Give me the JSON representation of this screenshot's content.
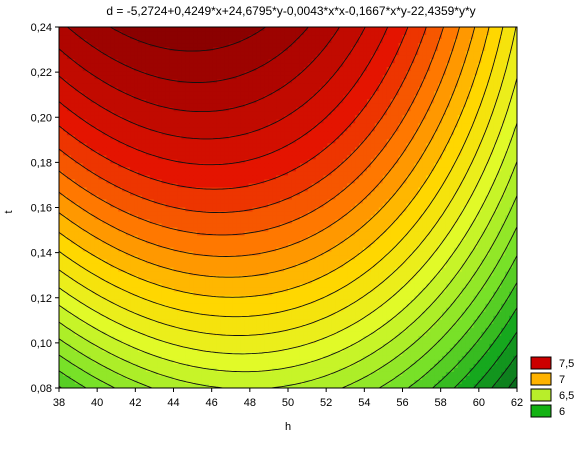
{
  "chart_data": {
    "type": "contour",
    "title": "d = -5,2724+0,4249*x+24,6795*y-0,0043*x*x-0,1667*x*y-22,4359*y*y",
    "xlabel": "h",
    "ylabel": "t",
    "xlim": [
      38,
      62
    ],
    "ylim": [
      0.08,
      0.24
    ],
    "x_ticks": [
      "38",
      "40",
      "42",
      "44",
      "46",
      "48",
      "50",
      "52",
      "54",
      "56",
      "58",
      "60",
      "62"
    ],
    "y_ticks": [
      "0,08",
      "0,10",
      "0,12",
      "0,14",
      "0,16",
      "0,18",
      "0,20",
      "0,22",
      "0,24"
    ],
    "coefficients": {
      "c0": -5.2724,
      "x": 0.4249,
      "y": 24.6795,
      "xx": -0.0043,
      "xy": -0.1667,
      "yy": -22.4359
    },
    "contour_levels_visible": true,
    "grid": false,
    "legend_position": "bottom-right",
    "legend": [
      {
        "label": "7,5",
        "color": "#cc0000"
      },
      {
        "label": "7",
        "color": "#ffb300"
      },
      {
        "label": "6,5",
        "color": "#b8ee2a"
      },
      {
        "label": "6",
        "color": "#13b213"
      }
    ],
    "colors": {
      "high": "#8b0000",
      "mid_high": "#e60000",
      "mid": "#ffcc00",
      "mid_low": "#ffff00",
      "low": "#8ee52a",
      "lowest": "#0a8a20"
    }
  }
}
